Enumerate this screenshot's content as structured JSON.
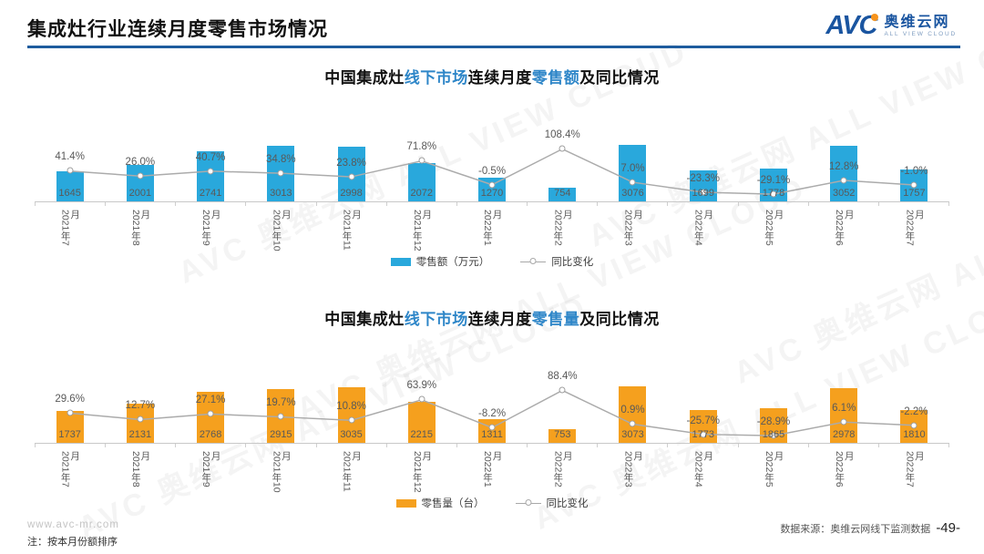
{
  "page": {
    "title": "集成灶行业连续月度零售市场情况",
    "logo": {
      "avc": "AVC",
      "cn": "奥维云网",
      "en": "ALL VIEW CLOUD"
    },
    "watermark": "AVC 奥维云网 ALL VIEW CLOUD",
    "footer": {
      "website": "www.avc-mr.com",
      "note": "注：按本月份额排序",
      "source": "数据来源：奥维云网线下监测数据",
      "page_number": "-49-"
    }
  },
  "colors": {
    "bar_blue": "#29A8DC",
    "bar_orange": "#F5A01E",
    "accent_text": "#2E86C8",
    "trend_line": "#ABABAB",
    "header_rule": "#1E5C9E",
    "logo_blue": "#1A55A0",
    "logo_orange": "#F7941D"
  },
  "chart_data": [
    {
      "type": "bar",
      "title": "中国集成灶线下市场连续月度零售额及同比情况",
      "title_parts": [
        {
          "text": "中国集成灶",
          "accent": false
        },
        {
          "text": "线下市场",
          "accent": true
        },
        {
          "text": "连续月度",
          "accent": false
        },
        {
          "text": "零售额",
          "accent": true
        },
        {
          "text": "及同比情况",
          "accent": false
        }
      ],
      "categories": [
        "2021年7月",
        "2021年8月",
        "2021年9月",
        "2021年10月",
        "2021年11月",
        "2021年12月",
        "2022年1月",
        "2022年2月",
        "2022年3月",
        "2022年4月",
        "2022年5月",
        "2022年6月",
        "2022年7月"
      ],
      "series": [
        {
          "name": "零售额（万元）",
          "type": "bar",
          "values": [
            1645,
            2001,
            2741,
            3013,
            2998,
            2072,
            1270,
            754,
            3076,
            1699,
            1778,
            3052,
            1757
          ]
        },
        {
          "name": "同比变化",
          "type": "line",
          "unit": "%",
          "values": [
            41.4,
            26.0,
            40.7,
            34.8,
            23.8,
            71.8,
            -0.5,
            108.4,
            7.0,
            -23.3,
            -29.1,
            12.8,
            -1.0
          ]
        }
      ],
      "legend": [
        "零售额（万元）",
        "同比变化"
      ],
      "bar_color": "#29A8DC",
      "grid": false,
      "legend_position": "bottom"
    },
    {
      "type": "bar",
      "title": "中国集成灶线下市场连续月度零售量及同比情况",
      "title_parts": [
        {
          "text": "中国集成灶",
          "accent": false
        },
        {
          "text": "线下市场",
          "accent": true
        },
        {
          "text": "连续月度",
          "accent": false
        },
        {
          "text": "零售量",
          "accent": true
        },
        {
          "text": "及同比情况",
          "accent": false
        }
      ],
      "categories": [
        "2021年7月",
        "2021年8月",
        "2021年9月",
        "2021年10月",
        "2021年11月",
        "2021年12月",
        "2022年1月",
        "2022年2月",
        "2022年3月",
        "2022年4月",
        "2022年5月",
        "2022年6月",
        "2022年7月"
      ],
      "series": [
        {
          "name": "零售量（台）",
          "type": "bar",
          "values": [
            1737,
            2131,
            2768,
            2915,
            3035,
            2215,
            1311,
            753,
            3073,
            1773,
            1865,
            2978,
            1810
          ]
        },
        {
          "name": "同比变化",
          "type": "line",
          "unit": "%",
          "values": [
            29.6,
            12.7,
            27.1,
            19.7,
            10.8,
            63.9,
            -8.2,
            88.4,
            0.9,
            -25.7,
            -28.9,
            6.1,
            -2.2
          ]
        }
      ],
      "legend": [
        "零售量（台）",
        "同比变化"
      ],
      "bar_color": "#F5A01E",
      "grid": false,
      "legend_position": "bottom"
    }
  ]
}
